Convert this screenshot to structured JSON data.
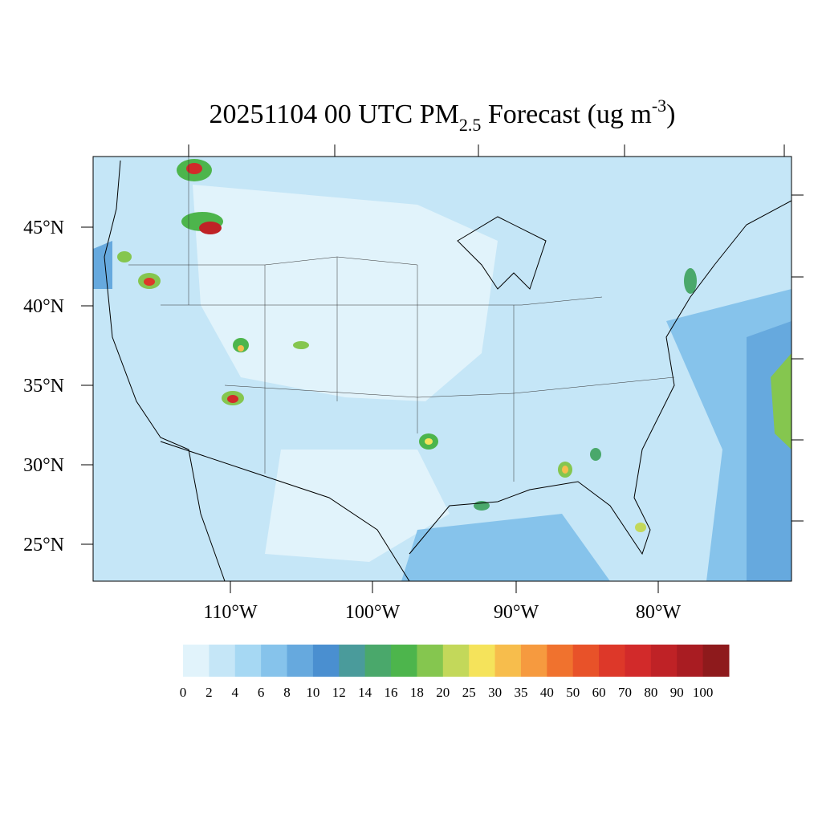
{
  "title": {
    "main": "20251104 00 UTC PM",
    "sub": "2.5",
    "rest": " Forecast (ug m",
    "sup": "-3",
    "end": ")"
  },
  "lat_labels": [
    "45°N",
    "40°N",
    "35°N",
    "30°N",
    "25°N"
  ],
  "lon_labels": [
    "110°W",
    "100°W",
    "90°W",
    "80°W"
  ],
  "colorbar": {
    "levels": [
      0,
      2,
      4,
      6,
      8,
      10,
      12,
      14,
      16,
      18,
      20,
      25,
      30,
      35,
      40,
      50,
      60,
      70,
      80,
      90,
      100
    ],
    "colors": [
      "#e1f3fb",
      "#c5e6f7",
      "#a6d8f3",
      "#86c3eb",
      "#66a9de",
      "#4a8fd0",
      "#4a9b9b",
      "#4aa86b",
      "#4db54c",
      "#85c64f",
      "#c3d85a",
      "#f5e35b",
      "#f7bd4c",
      "#f69a3f",
      "#f0722e",
      "#e85229",
      "#dd3829",
      "#d22a2a",
      "#bf2226",
      "#a91c22",
      "#8e1a1c"
    ]
  }
}
